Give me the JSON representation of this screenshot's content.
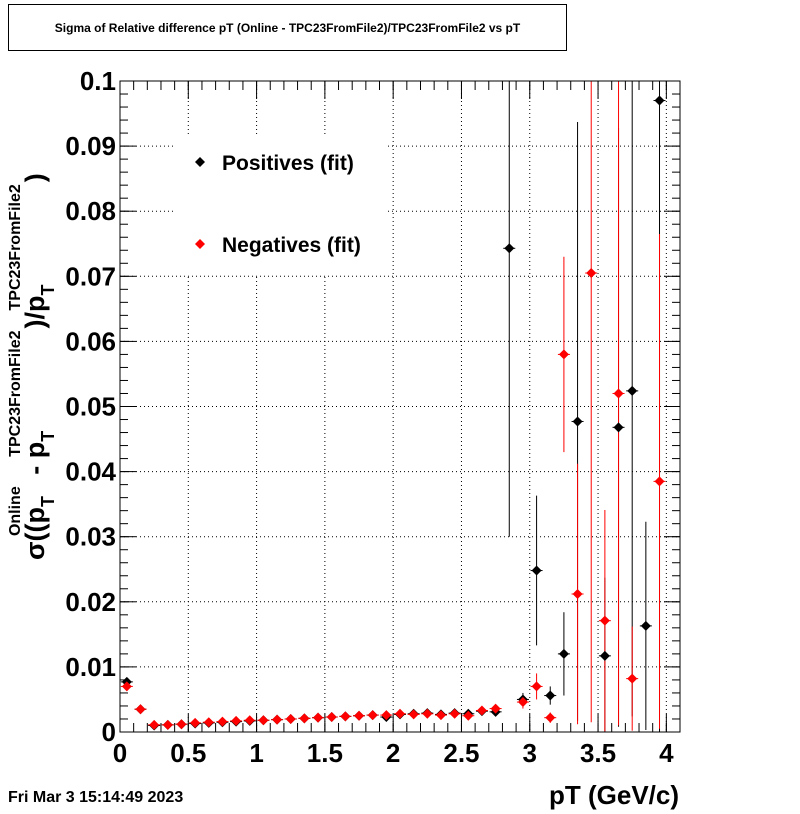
{
  "title": "Sigma of Relative difference pT (Online - TPC23FromFile2)/TPC23FromFile2 vs pT",
  "timestamp": "Fri Mar  3 15:14:49 2023",
  "chart_data": {
    "type": "scatter",
    "title": "Sigma of Relative difference pT (Online - TPC23FromFile2)/TPC23FromFile2 vs pT",
    "xlabel": "pT (GeV/c)",
    "ylabel_parts": {
      "sigma": "σ((p",
      "sub_t1": "T",
      "sup_online": "Online",
      "minus": " - p",
      "sub_t2": "T",
      "sup_tpc1": "TPC23FromFile2",
      "close": ")/p",
      "sub_t3": "T",
      "sup_tpc2": "TPC23FromFile2",
      "end": ")"
    },
    "xlim": [
      0,
      4.1
    ],
    "ylim": [
      0,
      0.1
    ],
    "x_ticks": [
      "0",
      "0.5",
      "1",
      "1.5",
      "2",
      "2.5",
      "3",
      "3.5",
      "4"
    ],
    "y_ticks": [
      "0",
      "0.01",
      "0.02",
      "0.03",
      "0.04",
      "0.05",
      "0.06",
      "0.07",
      "0.08",
      "0.09",
      "0.1"
    ],
    "grid": true,
    "legend_position": "top-left",
    "series": [
      {
        "name": "Positives (fit)",
        "color": "#000000",
        "points": [
          {
            "x": 0.05,
            "y": 0.0077,
            "err": 0.0003
          },
          {
            "x": 0.15,
            "y": 0.0035,
            "err": 0.0003
          },
          {
            "x": 0.25,
            "y": 0.001,
            "err": 0.0001
          },
          {
            "x": 0.35,
            "y": 0.0011,
            "err": 0.0001
          },
          {
            "x": 0.45,
            "y": 0.0012,
            "err": 0.0001
          },
          {
            "x": 0.55,
            "y": 0.0013,
            "err": 0.0001
          },
          {
            "x": 0.65,
            "y": 0.0014,
            "err": 0.0001
          },
          {
            "x": 0.75,
            "y": 0.0015,
            "err": 0.0001
          },
          {
            "x": 0.85,
            "y": 0.0016,
            "err": 0.0001
          },
          {
            "x": 0.95,
            "y": 0.0017,
            "err": 0.0001
          },
          {
            "x": 1.05,
            "y": 0.0018,
            "err": 0.0001
          },
          {
            "x": 1.15,
            "y": 0.0019,
            "err": 0.0001
          },
          {
            "x": 1.25,
            "y": 0.002,
            "err": 0.0001
          },
          {
            "x": 1.35,
            "y": 0.0021,
            "err": 0.0001
          },
          {
            "x": 1.45,
            "y": 0.0022,
            "err": 0.0001
          },
          {
            "x": 1.55,
            "y": 0.0023,
            "err": 0.0001
          },
          {
            "x": 1.65,
            "y": 0.0024,
            "err": 0.0001
          },
          {
            "x": 1.75,
            "y": 0.0025,
            "err": 0.0001
          },
          {
            "x": 1.85,
            "y": 0.0026,
            "err": 0.0001
          },
          {
            "x": 1.95,
            "y": 0.0023,
            "err": 0.0002
          },
          {
            "x": 2.05,
            "y": 0.0027,
            "err": 0.0001
          },
          {
            "x": 2.15,
            "y": 0.0028,
            "err": 0.0002
          },
          {
            "x": 2.25,
            "y": 0.0029,
            "err": 0.0002
          },
          {
            "x": 2.35,
            "y": 0.0027,
            "err": 0.0002
          },
          {
            "x": 2.45,
            "y": 0.0029,
            "err": 0.0002
          },
          {
            "x": 2.55,
            "y": 0.0028,
            "err": 0.0002
          },
          {
            "x": 2.65,
            "y": 0.0032,
            "err": 0.0002
          },
          {
            "x": 2.75,
            "y": 0.0031,
            "err": 0.0003
          },
          {
            "x": 2.85,
            "y": 0.0743,
            "err": 0.0443
          },
          {
            "x": 2.95,
            "y": 0.005,
            "err": 0.001
          },
          {
            "x": 3.05,
            "y": 0.0248,
            "err": 0.0115
          },
          {
            "x": 3.15,
            "y": 0.0056,
            "err": 0.0014
          },
          {
            "x": 3.25,
            "y": 0.012,
            "err": 0.0064
          },
          {
            "x": 3.35,
            "y": 0.0477,
            "err": 0.046
          },
          {
            "x": 3.55,
            "y": 0.0117,
            "err": 0.012
          },
          {
            "x": 3.65,
            "y": 0.0468,
            "err": 0.046
          },
          {
            "x": 3.75,
            "y": 0.0524,
            "err": 0.05
          },
          {
            "x": 3.85,
            "y": 0.0163,
            "err": 0.016
          },
          {
            "x": 3.95,
            "y": 0.097,
            "err": 0.097
          }
        ]
      },
      {
        "name": "Negatives (fit)",
        "color": "#ff0000",
        "points": [
          {
            "x": 0.05,
            "y": 0.007,
            "err": 0.0003
          },
          {
            "x": 0.15,
            "y": 0.0035,
            "err": 0.0003
          },
          {
            "x": 0.25,
            "y": 0.0011,
            "err": 0.0001
          },
          {
            "x": 0.35,
            "y": 0.0011,
            "err": 0.0001
          },
          {
            "x": 0.45,
            "y": 0.0012,
            "err": 0.0001
          },
          {
            "x": 0.55,
            "y": 0.0014,
            "err": 0.0001
          },
          {
            "x": 0.65,
            "y": 0.0015,
            "err": 0.0001
          },
          {
            "x": 0.75,
            "y": 0.0016,
            "err": 0.0001
          },
          {
            "x": 0.85,
            "y": 0.0017,
            "err": 0.0001
          },
          {
            "x": 0.95,
            "y": 0.0018,
            "err": 0.0001
          },
          {
            "x": 1.05,
            "y": 0.0018,
            "err": 0.0001
          },
          {
            "x": 1.15,
            "y": 0.0019,
            "err": 0.0001
          },
          {
            "x": 1.25,
            "y": 0.002,
            "err": 0.0001
          },
          {
            "x": 1.35,
            "y": 0.0021,
            "err": 0.0001
          },
          {
            "x": 1.45,
            "y": 0.0022,
            "err": 0.0001
          },
          {
            "x": 1.55,
            "y": 0.0023,
            "err": 0.0001
          },
          {
            "x": 1.65,
            "y": 0.0024,
            "err": 0.0001
          },
          {
            "x": 1.75,
            "y": 0.0025,
            "err": 0.0001
          },
          {
            "x": 1.85,
            "y": 0.0026,
            "err": 0.0001
          },
          {
            "x": 1.95,
            "y": 0.0026,
            "err": 0.0002
          },
          {
            "x": 2.05,
            "y": 0.0028,
            "err": 0.0002
          },
          {
            "x": 2.15,
            "y": 0.0027,
            "err": 0.0002
          },
          {
            "x": 2.25,
            "y": 0.0028,
            "err": 0.0002
          },
          {
            "x": 2.35,
            "y": 0.0026,
            "err": 0.0002
          },
          {
            "x": 2.45,
            "y": 0.0028,
            "err": 0.0002
          },
          {
            "x": 2.55,
            "y": 0.0025,
            "err": 0.0002
          },
          {
            "x": 2.65,
            "y": 0.0033,
            "err": 0.0002
          },
          {
            "x": 2.75,
            "y": 0.0036,
            "err": 0.0004
          },
          {
            "x": 2.95,
            "y": 0.0046,
            "err": 0.001
          },
          {
            "x": 3.05,
            "y": 0.007,
            "err": 0.002
          },
          {
            "x": 3.15,
            "y": 0.0022,
            "err": 0.0008
          },
          {
            "x": 3.25,
            "y": 0.058,
            "err": 0.015
          },
          {
            "x": 3.35,
            "y": 0.0212,
            "err": 0.02
          },
          {
            "x": 3.45,
            "y": 0.0705,
            "err": 0.069
          },
          {
            "x": 3.55,
            "y": 0.0171,
            "err": 0.017
          },
          {
            "x": 3.65,
            "y": 0.052,
            "err": 0.051
          },
          {
            "x": 3.75,
            "y": 0.0082,
            "err": 0.008
          },
          {
            "x": 3.95,
            "y": 0.0385,
            "err": 0.038
          }
        ]
      }
    ]
  }
}
